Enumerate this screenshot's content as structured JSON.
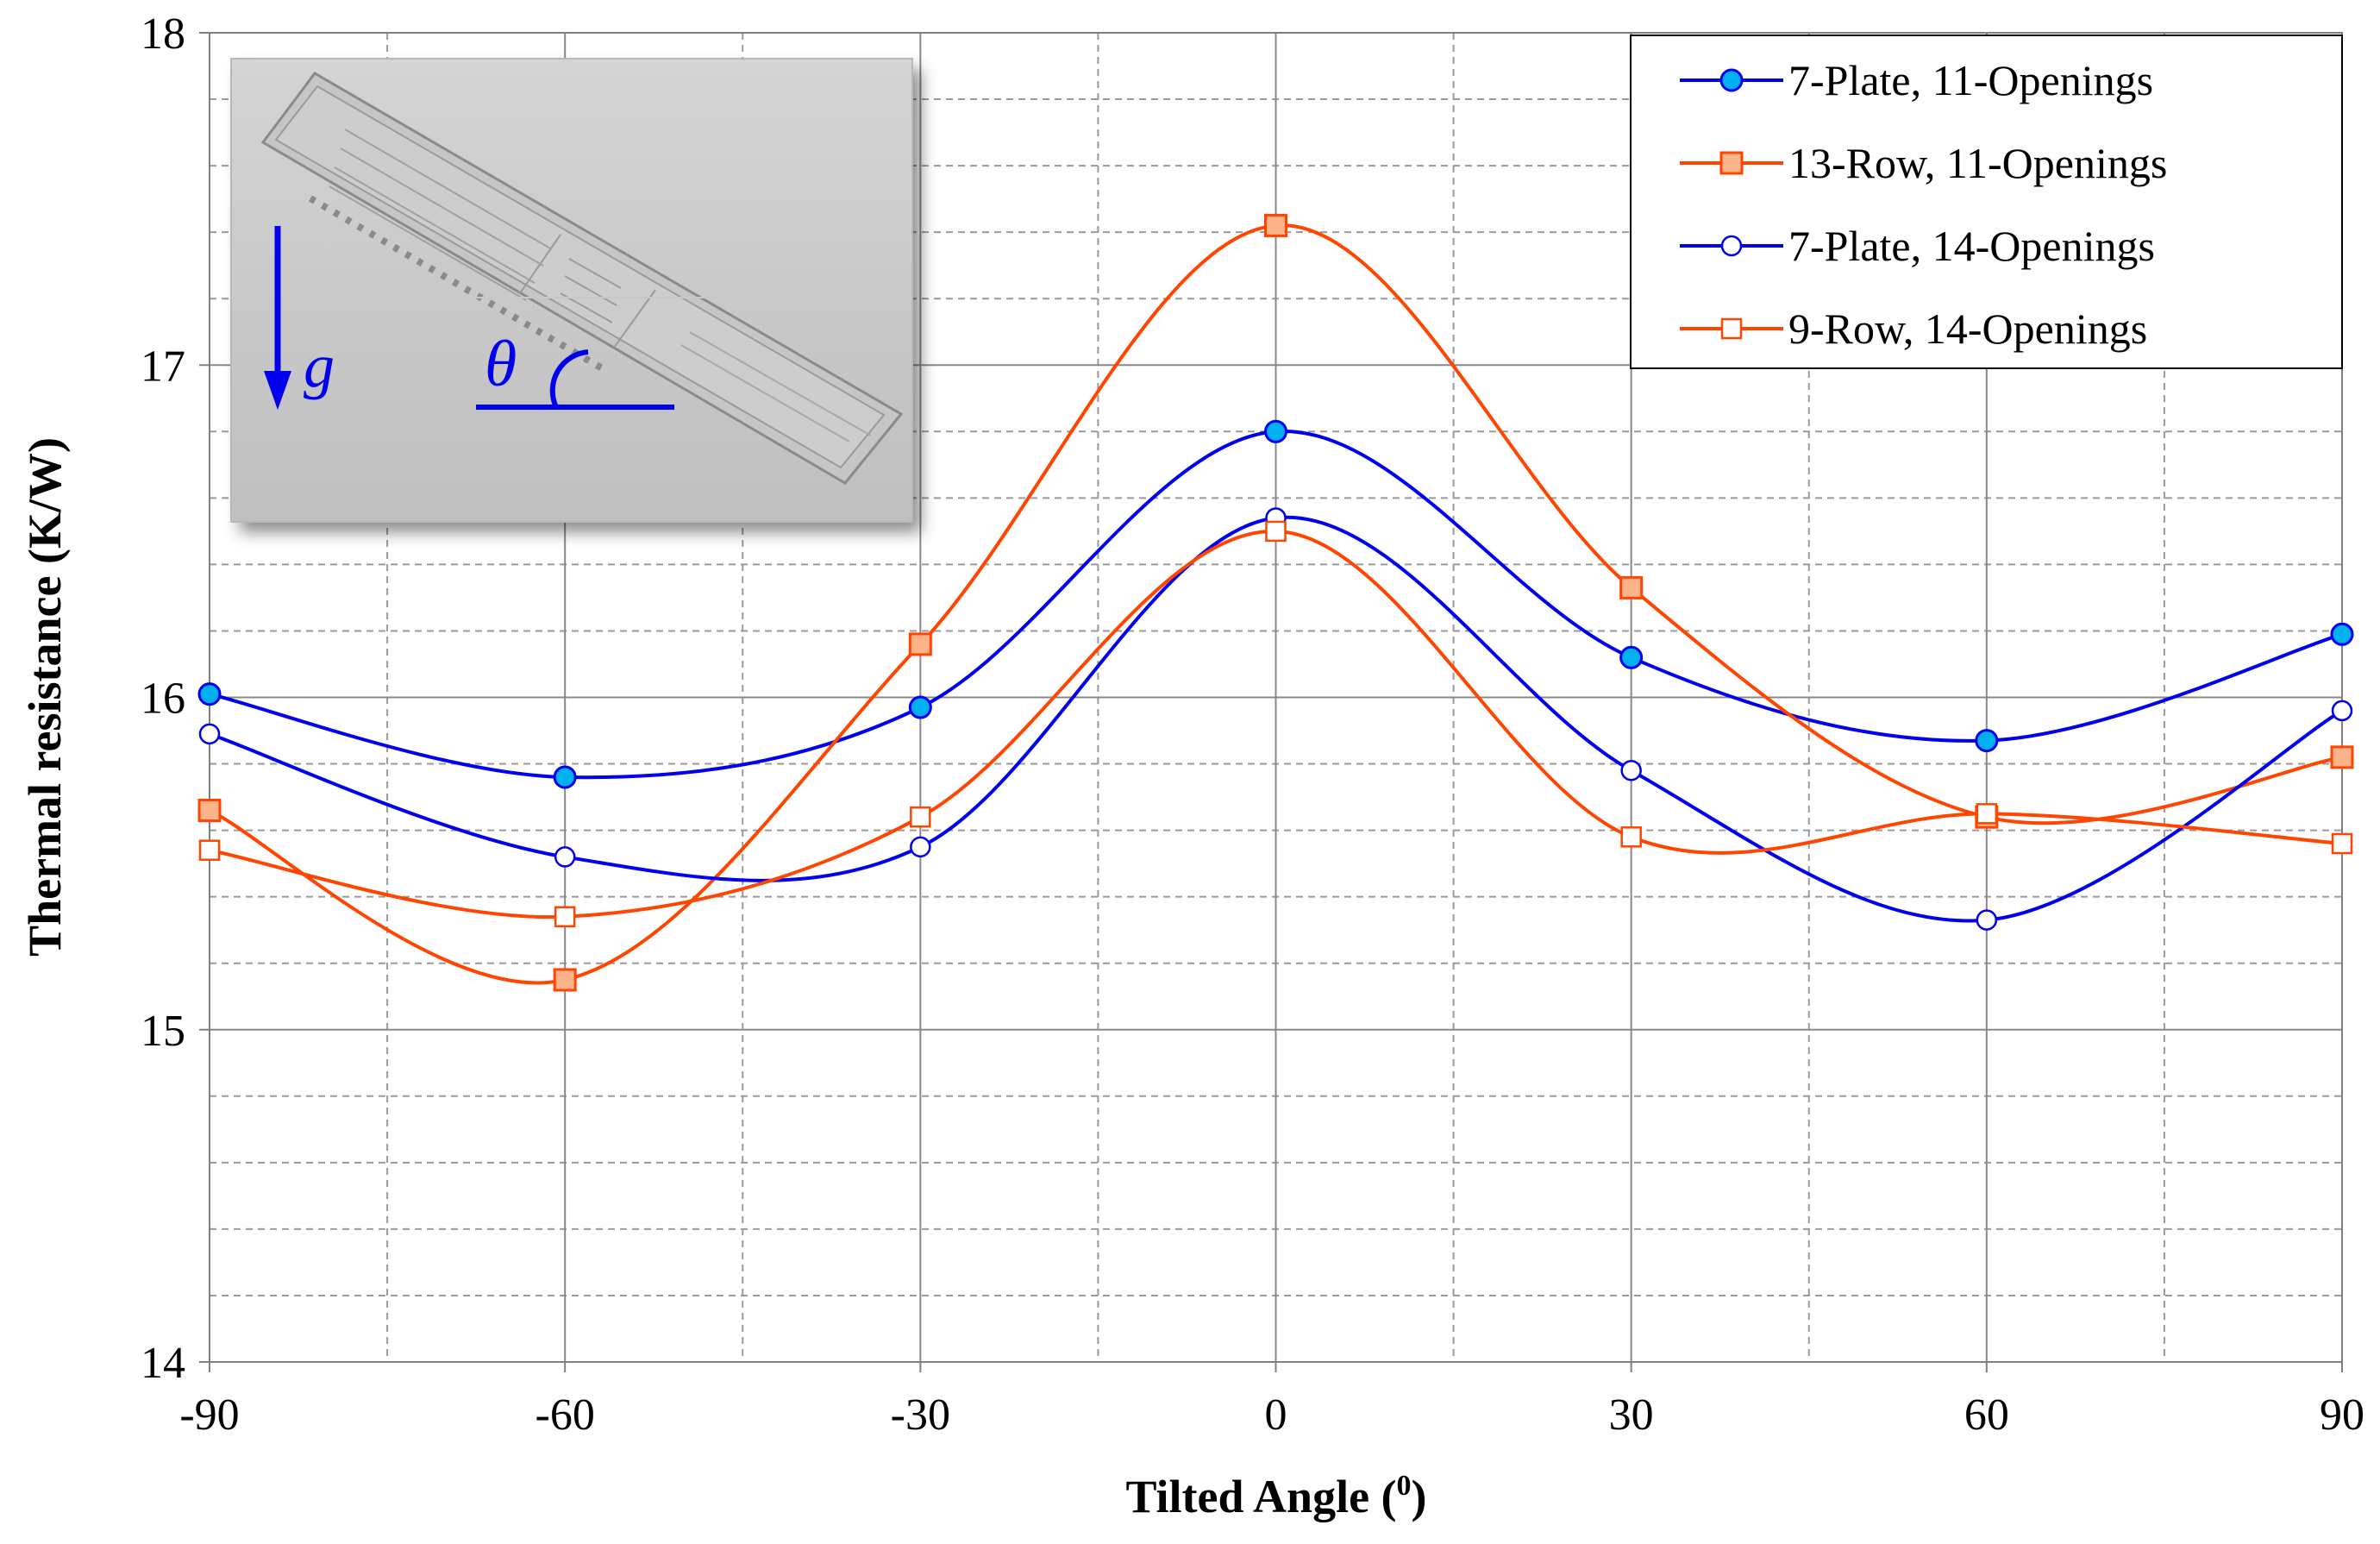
{
  "chart_data": {
    "type": "line",
    "title": "",
    "xlabel": "Tilted Angle (",
    "xlabel_sup": "0",
    "xlabel_close": ")",
    "ylabel": "Thermal resistance (K/W)",
    "x": [
      -90,
      -60,
      -30,
      0,
      30,
      60,
      90
    ],
    "xlim": [
      -90,
      90
    ],
    "ylim": [
      14,
      18
    ],
    "x_ticks": [
      "-90",
      "-60",
      "-30",
      "0",
      "30",
      "60",
      "90"
    ],
    "y_ticks": [
      "14",
      "15",
      "16",
      "17",
      "18"
    ],
    "grid": true,
    "legend_position": "top-right",
    "series": [
      {
        "name": "7-Plate, 11-Openings",
        "color": "#0000ee",
        "marker": "circle-filled",
        "values": [
          16.01,
          15.76,
          15.97,
          16.8,
          16.12,
          15.87,
          16.19
        ]
      },
      {
        "name": "13-Row, 11-Openings",
        "color": "#ff4500",
        "marker": "square-filled",
        "values": [
          15.66,
          15.15,
          16.16,
          17.42,
          16.33,
          15.64,
          15.82
        ]
      },
      {
        "name": "7-Plate, 14-Openings",
        "color": "#0000ee",
        "marker": "circle-open",
        "values": [
          15.89,
          15.52,
          15.55,
          16.54,
          15.78,
          15.33,
          15.96
        ]
      },
      {
        "name": "9-Row, 14-Openings",
        "color": "#ff4500",
        "marker": "square-open",
        "values": [
          15.54,
          15.34,
          15.64,
          16.5,
          15.58,
          15.65,
          15.56
        ]
      }
    ],
    "inset": {
      "description_icons": [
        "gravity-arrow",
        "tilt-angle"
      ],
      "gravity_label": "g",
      "angle_label": "θ"
    }
  }
}
